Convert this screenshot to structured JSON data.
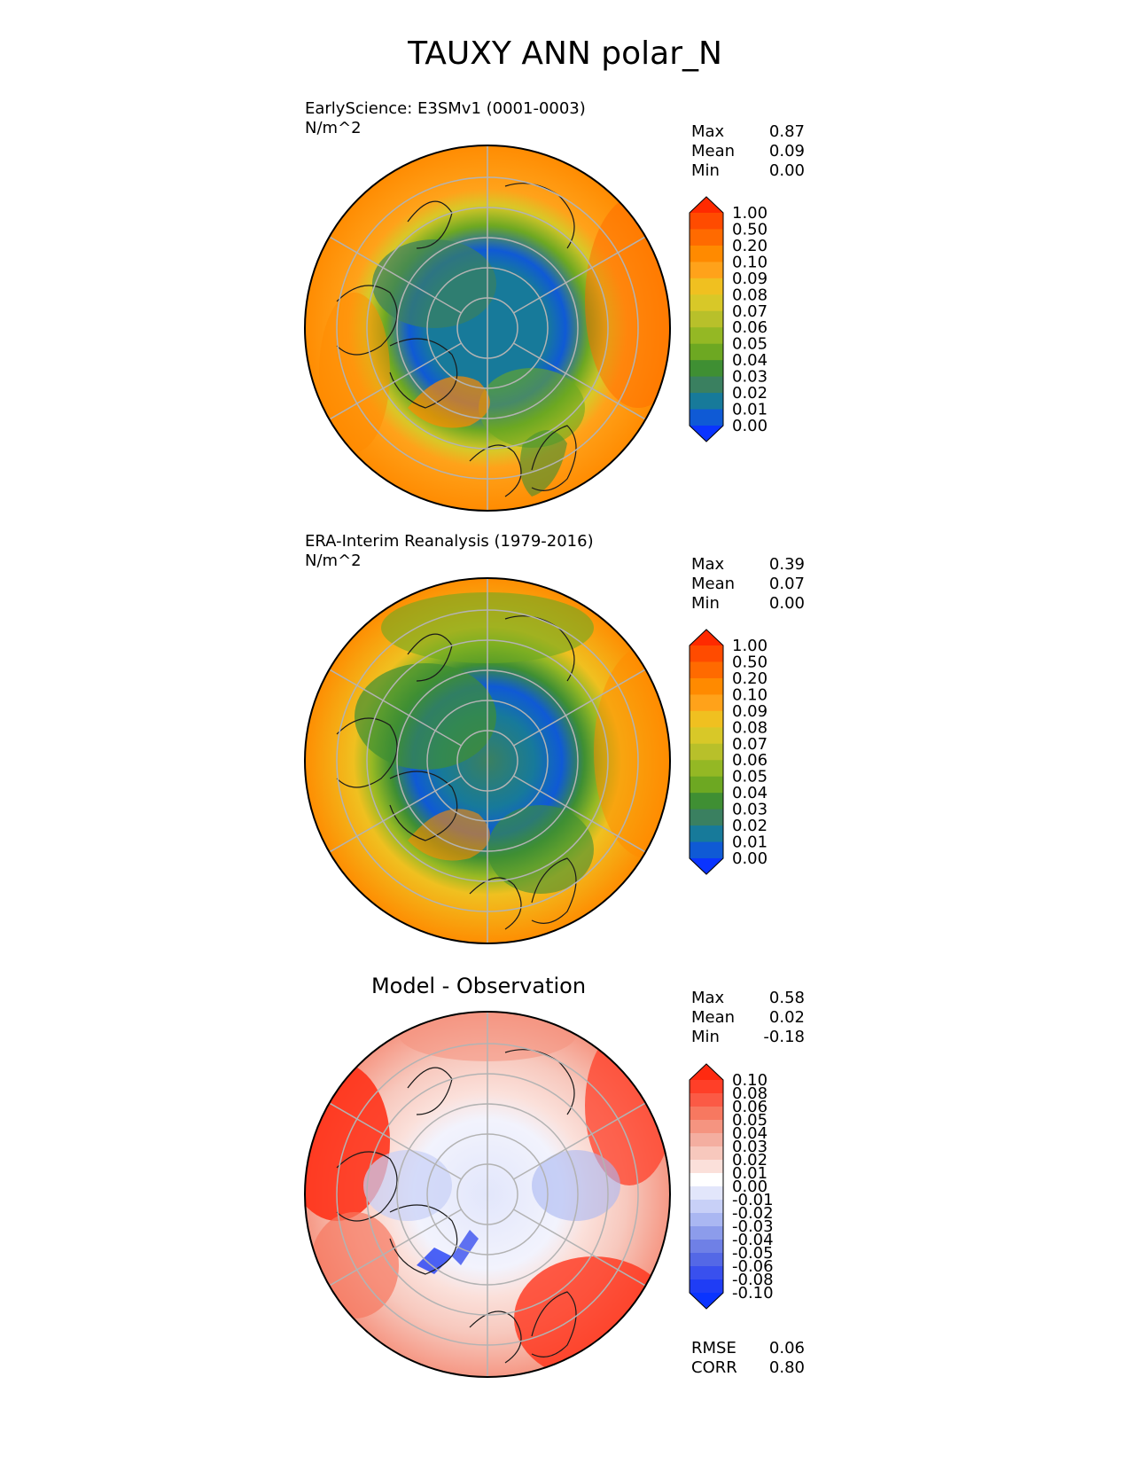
{
  "figure_title": "TAUXY ANN polar_N",
  "panels": [
    {
      "title": "EarlyScience: E3SMv1 (0001-0003)",
      "units": "N/m^2",
      "stats": [
        {
          "label": "Max",
          "value": "0.87"
        },
        {
          "label": "Mean",
          "value": "0.09"
        },
        {
          "label": "Min",
          "value": "0.00"
        }
      ],
      "colorbar_ticks": [
        "1.00",
        "0.50",
        "0.20",
        "0.10",
        "0.09",
        "0.08",
        "0.07",
        "0.06",
        "0.05",
        "0.04",
        "0.03",
        "0.02",
        "0.01",
        "0.00"
      ],
      "colorbar_colors": [
        "#ff2a00",
        "#ff4b00",
        "#ff6a00",
        "#ff8a00",
        "#ffa21a",
        "#f0c020",
        "#d8c828",
        "#b8c02a",
        "#94b824",
        "#6da822",
        "#3f8f33",
        "#3a8060",
        "#177a9a",
        "#0f5ad5",
        "#0a34ff"
      ]
    },
    {
      "title": "ERA-Interim Reanalysis (1979-2016)",
      "units": "N/m^2",
      "stats": [
        {
          "label": "Max",
          "value": "0.39"
        },
        {
          "label": "Mean",
          "value": "0.07"
        },
        {
          "label": "Min",
          "value": "0.00"
        }
      ],
      "colorbar_ticks": [
        "1.00",
        "0.50",
        "0.20",
        "0.10",
        "0.09",
        "0.08",
        "0.07",
        "0.06",
        "0.05",
        "0.04",
        "0.03",
        "0.02",
        "0.01",
        "0.00"
      ],
      "colorbar_colors": [
        "#ff2a00",
        "#ff4b00",
        "#ff6a00",
        "#ff8a00",
        "#ffa21a",
        "#f0c020",
        "#d8c828",
        "#b8c02a",
        "#94b824",
        "#6da822",
        "#3f8f33",
        "#3a8060",
        "#177a9a",
        "#0f5ad5",
        "#0a34ff"
      ]
    },
    {
      "title": "Model - Observation",
      "units": "",
      "stats": [
        {
          "label": "Max",
          "value": "0.58"
        },
        {
          "label": "Mean",
          "value": "0.02"
        },
        {
          "label": "Min",
          "value": "-0.18"
        }
      ],
      "colorbar_ticks": [
        "0.10",
        "0.08",
        "0.06",
        "0.05",
        "0.04",
        "0.03",
        "0.02",
        "0.01",
        "0.00",
        "-0.01",
        "-0.02",
        "-0.03",
        "-0.04",
        "-0.05",
        "-0.06",
        "-0.08",
        "-0.10"
      ],
      "colorbar_colors": [
        "#ff2a10",
        "#ff3f28",
        "#fb5a45",
        "#f77860",
        "#f59480",
        "#f4aea0",
        "#f7c8bd",
        "#fbe0da",
        "#ffffff",
        "#e2e6fb",
        "#c8d0f7",
        "#aab7f2",
        "#8c9ceb",
        "#6f80e6",
        "#5468e6",
        "#3950ee",
        "#1f3df5",
        "#0a34ff"
      ],
      "metrics": [
        {
          "label": "RMSE",
          "value": "0.06"
        },
        {
          "label": "CORR",
          "value": "0.80"
        }
      ]
    }
  ]
}
